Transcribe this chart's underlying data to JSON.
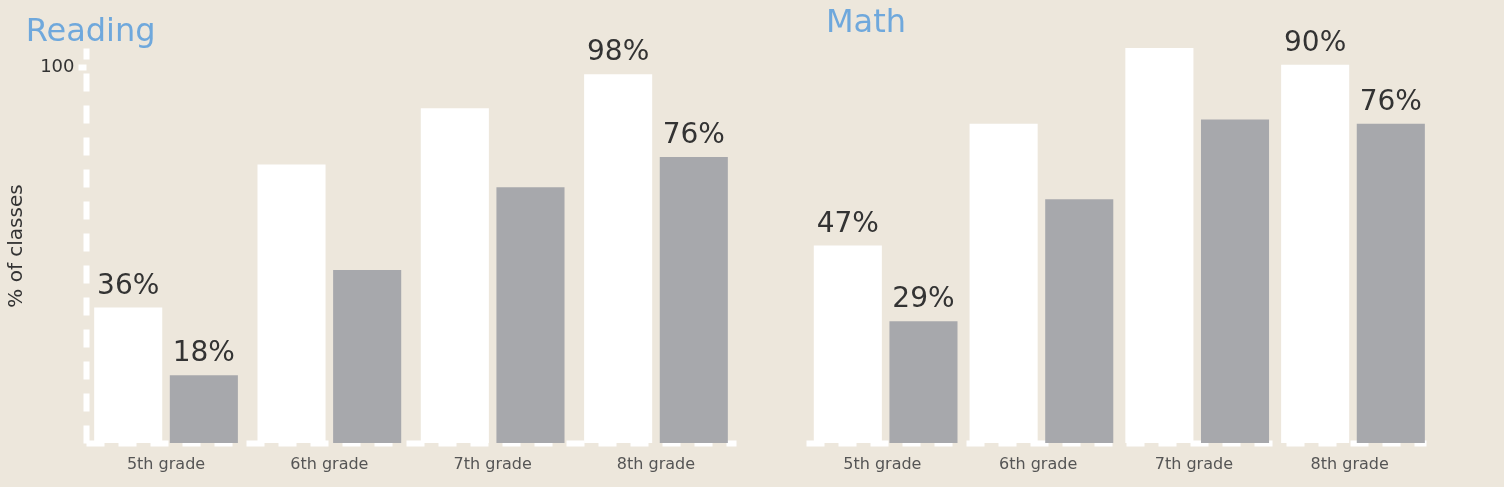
{
  "chart_data": [
    {
      "type": "bar",
      "title": "Reading",
      "ylabel": "% of classes",
      "categories": [
        "5th grade",
        "6th grade",
        "7th grade",
        "8th grade"
      ],
      "ylim": [
        0,
        105
      ],
      "yticks": [
        100
      ],
      "series": [
        {
          "color": "#ffffff",
          "values": [
            36,
            74,
            89,
            98
          ],
          "value_labels": [
            "36%",
            null,
            null,
            "98%"
          ]
        },
        {
          "color": "#a7a8ac",
          "values": [
            18,
            46,
            68,
            76
          ],
          "value_labels": [
            "18%",
            null,
            null,
            "76%"
          ]
        }
      ]
    },
    {
      "type": "bar",
      "title": "Math",
      "categories": [
        "5th grade",
        "6th grade",
        "7th grade",
        "8th grade"
      ],
      "tick_labels": "x",
      "series": [
        {
          "color": "#ffffff",
          "values": [
            47,
            76,
            94,
            90
          ],
          "value_labels": [
            "47%",
            null,
            null,
            "90%"
          ]
        },
        {
          "color": "#a7a8ac",
          "values": [
            29,
            58,
            77,
            76
          ],
          "value_labels": [
            "29%",
            null,
            null,
            "76%"
          ]
        }
      ]
    }
  ]
}
